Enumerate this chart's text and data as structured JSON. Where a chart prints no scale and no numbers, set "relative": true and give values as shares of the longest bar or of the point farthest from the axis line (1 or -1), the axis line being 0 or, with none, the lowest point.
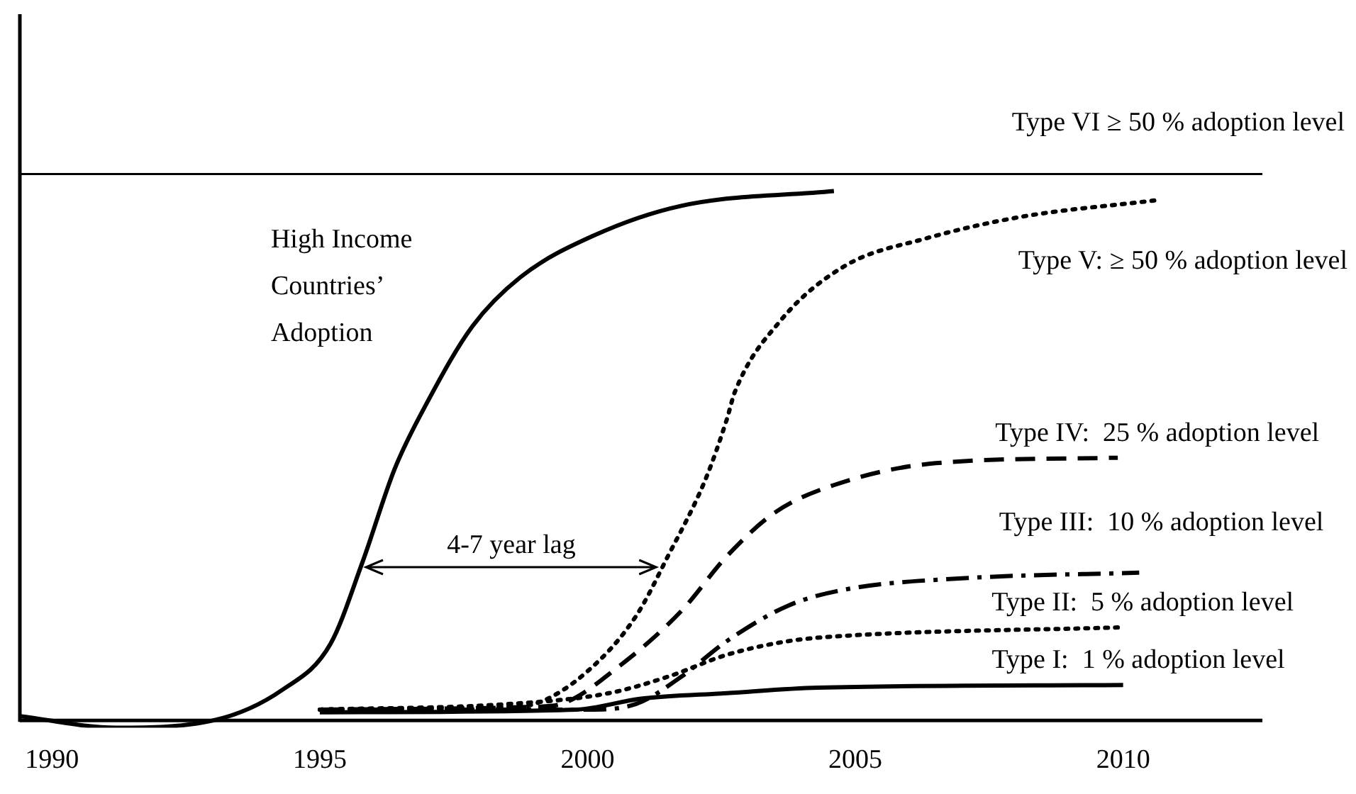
{
  "chart_data": {
    "type": "line",
    "relative": true,
    "xlim": [
      1989.4,
      2012.6
    ],
    "xticks": [
      1990,
      1995,
      2000,
      2005,
      2010
    ],
    "grid": false,
    "legend": false,
    "marker": "none",
    "series": [
      {
        "name": "High Income Countries’ Adoption",
        "color": "#000000",
        "line_style": "solid",
        "x": [
          1989.4,
          1991.2,
          1993.0,
          1994.3,
          1995.2,
          1995.8,
          1996.4,
          1997.0,
          1997.85,
          1998.75,
          2000.1,
          2001.75,
          2004.6
        ],
        "values": [
          0.008,
          -0.013,
          0,
          0.056,
          0.14,
          0.29,
          0.46,
          0.58,
          0.72,
          0.81,
          0.885,
          0.94,
          0.967
        ]
      },
      {
        "name": "Type VI ≥ 50 % adoption level",
        "color": "#000000",
        "line_style": "solid",
        "x": [
          1989.4,
          2012.6
        ],
        "values": [
          1,
          1
        ]
      },
      {
        "name": "Type V: ≥ 50 % adoption level",
        "color": "#000000",
        "line_style": "dotted",
        "x": [
          1995.0,
          1998.5,
          1999.0,
          2000.0,
          2000.9,
          2001.5,
          2002.2,
          2002.6,
          2002.75,
          2003.6,
          2004.8,
          2006.3,
          2008.1,
          2010.6
        ],
        "values": [
          0.02,
          0.025,
          0.03,
          0.09,
          0.19,
          0.3,
          0.44,
          0.55,
          0.6,
          0.73,
          0.83,
          0.88,
          0.92,
          0.95
        ]
      },
      {
        "name": "Type IV:  25 % adoption level",
        "color": "#000000",
        "line_style": "dashed",
        "x": [
          1995.0,
          1999.0,
          1999.5,
          2000.6,
          2001.75,
          2002.6,
          2003.5,
          2004.6,
          2006.5,
          2009.9
        ],
        "values": [
          0.02,
          0.025,
          0.03,
          0.1,
          0.2,
          0.3,
          0.38,
          0.43,
          0.47,
          0.48
        ]
      },
      {
        "name": "Type III:  10 % adoption level",
        "color": "#000000",
        "line_style": "dashdot",
        "x": [
          1995.0,
          2000.0,
          2000.9,
          2001.75,
          2002.6,
          2003.75,
          2004.85,
          2007.05,
          2010.3
        ],
        "values": [
          0.02,
          0.02,
          0.03,
          0.08,
          0.145,
          0.21,
          0.24,
          0.26,
          0.27
        ]
      },
      {
        "name": "Type II:  5 % adoption level",
        "color": "#000000",
        "line_style": "dotted",
        "x": [
          1995.0,
          1998.5,
          2000.4,
          2001.5,
          2002.6,
          2003.75,
          2004.85,
          2009.9
        ],
        "values": [
          0.02,
          0.03,
          0.05,
          0.08,
          0.12,
          0.145,
          0.155,
          0.17
        ]
      },
      {
        "name": "Type I:  1 % adoption level",
        "color": "#000000",
        "line_style": "solid",
        "x": [
          1995.0,
          1999.8,
          2001.0,
          2002.6,
          2004.3,
          2010.0
        ],
        "values": [
          0.015,
          0.02,
          0.04,
          0.05,
          0.06,
          0.065
        ]
      }
    ],
    "annotations": [
      "4-7 year lag"
    ]
  }
}
